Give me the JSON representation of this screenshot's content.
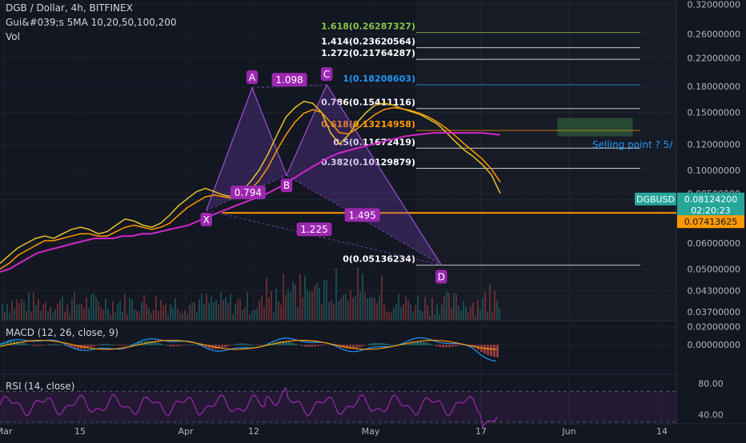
{
  "header": {
    "title": "DGB / Dollar, 4h, BITFINEX",
    "indicator": "Gui&#039;s 5MA 10,20,50,100,200",
    "volume": "Vol"
  },
  "panes": {
    "macd_title": "MACD (12, 26, close, 9)",
    "rsi_title": "RSI (14, close)"
  },
  "colors": {
    "background": "#131722",
    "grid": "#1e222d",
    "candle_up": "#26a69a",
    "candle_down": "#ef5350",
    "pattern_fill": "#7b3fc4",
    "pattern_line": "#9c4fd8",
    "ma_magenta": "#d126c9",
    "ma_orange": "#ff9800",
    "ma_yellow": "#e6c229",
    "horizontal_level": "#ff9800",
    "selling_box": "#4caf50",
    "label_bg": "#9c27b0",
    "price_tag": "#26a69a",
    "level_tag": "#ff9800",
    "macd_line": "#2196f3",
    "signal_line": "#ff9800",
    "rsi_line": "#9c27b0"
  },
  "chart_data": {
    "type": "line",
    "title": "DGB / Dollar, 4h, BITFINEX",
    "y_scale": "log",
    "ylim": [
      0.035,
      0.33
    ],
    "price_axis_labels": [
      "0.32000000",
      "0.26000000",
      "0.22000000",
      "0.18000000",
      "0.15000000",
      "0.12000000",
      "0.10000000",
      "0.08500000",
      "0.06000000",
      "0.05000000",
      "0.04300000",
      "0.03700000"
    ],
    "x_ticks": [
      "Mar",
      "15",
      "Apr",
      "12",
      "May",
      "17",
      "Jun",
      "14"
    ],
    "current_price": {
      "symbol": "DGBUSD",
      "value": "0.08124200",
      "countdown": "02:20:23"
    },
    "horizontal_level": {
      "value": "0.07413625"
    },
    "harmonic_pattern": {
      "points": [
        {
          "label": "X",
          "x": "Apr 8",
          "price": 0.0755
        },
        {
          "label": "A",
          "x": "Apr 16",
          "price": 0.178
        },
        {
          "label": "B",
          "x": "Apr 22",
          "price": 0.0965
        },
        {
          "label": "C",
          "x": "Apr 29",
          "price": 0.182
        },
        {
          "label": "D",
          "x": "May 19",
          "price": 0.0514
        }
      ],
      "ratios": [
        "0.794",
        "1.098",
        "1.495",
        "1.225"
      ]
    },
    "fibonacci_levels": [
      {
        "label": "1.618(0.26287327)",
        "value": 0.26287327,
        "color": "#8bc34a"
      },
      {
        "label": "1.414(0.23620564)",
        "value": 0.23620564,
        "color": "#ffffff"
      },
      {
        "label": "1.272(0.21764287)",
        "value": 0.21764287,
        "color": "#ffffff"
      },
      {
        "label": "1(0.18208603)",
        "value": 0.18208603,
        "color": "#2196f3"
      },
      {
        "label": "0.786(0.15411116)",
        "value": 0.15411116,
        "color": "#ffffff"
      },
      {
        "label": "0.618(0.13214958)",
        "value": 0.13214958,
        "color": "#ff9800"
      },
      {
        "label": "0.5(0.11672419)",
        "value": 0.11672419,
        "color": "#ffffff"
      },
      {
        "label": "0.382(0.10129879)",
        "value": 0.10129879,
        "color": "#ffffff"
      },
      {
        "label": "0(0.05136234)",
        "value": 0.05136234,
        "color": "#ffffff"
      }
    ],
    "annotation": {
      "text": "Selling point ? 5/"
    },
    "series": [
      {
        "values": [
          0.052,
          0.055,
          0.058,
          0.06,
          0.062,
          0.063,
          0.062,
          0.064,
          0.066,
          0.067,
          0.066,
          0.064,
          0.065,
          0.068,
          0.071,
          0.07,
          0.068,
          0.067,
          0.069,
          0.073,
          0.078,
          0.082,
          0.086,
          0.088,
          0.086,
          0.084,
          0.083,
          0.086,
          0.092,
          0.1,
          0.112,
          0.128,
          0.145,
          0.155,
          0.162,
          0.16,
          0.15,
          0.13,
          0.12,
          0.128,
          0.14,
          0.15,
          0.158,
          0.16,
          0.158,
          0.154,
          0.151,
          0.148,
          0.143,
          0.138,
          0.13,
          0.122,
          0.115,
          0.11,
          0.104,
          0.097,
          0.085
        ]
      },
      {
        "values": [
          0.05,
          0.052,
          0.055,
          0.057,
          0.059,
          0.061,
          0.061,
          0.062,
          0.063,
          0.064,
          0.064,
          0.063,
          0.063,
          0.065,
          0.067,
          0.068,
          0.067,
          0.066,
          0.067,
          0.069,
          0.073,
          0.077,
          0.08,
          0.083,
          0.084,
          0.083,
          0.082,
          0.083,
          0.087,
          0.093,
          0.102,
          0.115,
          0.128,
          0.14,
          0.149,
          0.153,
          0.15,
          0.14,
          0.13,
          0.129,
          0.134,
          0.141,
          0.148,
          0.153,
          0.155,
          0.154,
          0.152,
          0.149,
          0.145,
          0.14,
          0.134,
          0.127,
          0.12,
          0.114,
          0.108,
          0.101,
          0.092
        ]
      },
      {
        "values": [
          0.049,
          0.05,
          0.052,
          0.054,
          0.056,
          0.057,
          0.058,
          0.059,
          0.06,
          0.061,
          0.062,
          0.062,
          0.062,
          0.063,
          0.063,
          0.064,
          0.064,
          0.065,
          0.066,
          0.067,
          0.068,
          0.07,
          0.072,
          0.074,
          0.076,
          0.078,
          0.08,
          0.082,
          0.084,
          0.087,
          0.09,
          0.094,
          0.098,
          0.102,
          0.106,
          0.11,
          0.113,
          0.115,
          0.117,
          0.119,
          0.121,
          0.123,
          0.125,
          0.127,
          0.128,
          0.129,
          0.13,
          0.13,
          0.13,
          0.13,
          0.13,
          0.13,
          0.129,
          0.128
        ]
      }
    ],
    "macd": {
      "ylim": [
        -0.03,
        0.025
      ],
      "axis_labels": [
        "0.02000000",
        "0.00000000"
      ]
    },
    "rsi": {
      "ylim": [
        30,
        90
      ],
      "axis_labels": [
        "80.00",
        "40.00"
      ]
    }
  }
}
